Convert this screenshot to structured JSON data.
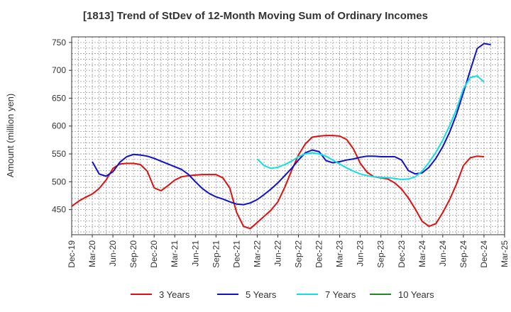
{
  "chart_data": {
    "type": "line",
    "title": "[1813]  Trend of StDev of 12-Month Moving Sum of Ordinary Incomes",
    "xlabel": "",
    "ylabel": "Amount (million yen)",
    "ylim": [
      405,
      760
    ],
    "yticks": [
      450,
      500,
      550,
      600,
      650,
      700,
      750
    ],
    "grid": true,
    "legend_position": "bottom",
    "x_tick_labels": [
      "Dec-19",
      "Mar-20",
      "Jun-20",
      "Sep-20",
      "Dec-20",
      "Mar-21",
      "Jun-21",
      "Sep-21",
      "Dec-21",
      "Mar-22",
      "Jun-22",
      "Sep-22",
      "Dec-22",
      "Mar-23",
      "Jun-23",
      "Sep-23",
      "Dec-23",
      "Mar-24",
      "Jun-24",
      "Sep-24",
      "Dec-24",
      "Mar-25"
    ],
    "x_months": [
      "Dec-19",
      "Jan-20",
      "Feb-20",
      "Mar-20",
      "Apr-20",
      "May-20",
      "Jun-20",
      "Jul-20",
      "Aug-20",
      "Sep-20",
      "Oct-20",
      "Nov-20",
      "Dec-20",
      "Jan-21",
      "Feb-21",
      "Mar-21",
      "Apr-21",
      "May-21",
      "Jun-21",
      "Jul-21",
      "Aug-21",
      "Sep-21",
      "Oct-21",
      "Nov-21",
      "Dec-21",
      "Jan-22",
      "Feb-22",
      "Mar-22",
      "Apr-22",
      "May-22",
      "Jun-22",
      "Jul-22",
      "Aug-22",
      "Sep-22",
      "Oct-22",
      "Nov-22",
      "Dec-22",
      "Jan-23",
      "Feb-23",
      "Mar-23",
      "Apr-23",
      "May-23",
      "Jun-23",
      "Jul-23",
      "Aug-23",
      "Sep-23",
      "Oct-23",
      "Nov-23",
      "Dec-23",
      "Jan-24",
      "Feb-24",
      "Mar-24",
      "Apr-24",
      "May-24",
      "Jun-24",
      "Jul-24",
      "Aug-24",
      "Sep-24",
      "Oct-24",
      "Nov-24",
      "Dec-24",
      "Jan-25",
      "Feb-25",
      "Mar-25"
    ],
    "series": [
      {
        "name": "3 Years",
        "color": "#dd1111",
        "values": [
          456,
          465,
          472,
          478,
          488,
          503,
          524,
          532,
          533,
          533,
          531,
          519,
          489,
          484,
          493,
          503,
          509,
          511,
          512,
          513,
          513,
          513,
          507,
          489,
          445,
          420,
          416,
          427,
          438,
          449,
          464,
          490,
          520,
          548,
          568,
          580,
          582,
          583,
          583,
          582,
          576,
          559,
          533,
          517,
          509,
          507,
          505,
          498,
          487,
          471,
          451,
          429,
          420,
          425,
          445,
          468,
          496,
          529,
          543,
          546,
          545,
          null,
          null,
          null
        ]
      },
      {
        "name": "5 Years",
        "color": "#1111cc",
        "values": [
          null,
          null,
          null,
          536,
          514,
          510,
          518,
          535,
          545,
          549,
          548,
          546,
          542,
          537,
          532,
          527,
          522,
          513,
          500,
          488,
          479,
          473,
          469,
          464,
          460,
          459,
          462,
          468,
          477,
          487,
          498,
          511,
          524,
          539,
          552,
          557,
          554,
          538,
          534,
          536,
          539,
          541,
          544,
          546,
          546,
          545,
          545,
          545,
          539,
          520,
          514,
          516,
          526,
          542,
          563,
          589,
          621,
          660,
          700,
          739,
          748,
          746,
          null,
          null
        ]
      },
      {
        "name": "7 Years",
        "color": "#11e0e0",
        "values": [
          null,
          null,
          null,
          null,
          null,
          null,
          null,
          null,
          null,
          null,
          null,
          null,
          null,
          null,
          null,
          null,
          null,
          null,
          null,
          null,
          null,
          null,
          null,
          null,
          null,
          null,
          null,
          541,
          529,
          524,
          526,
          531,
          537,
          545,
          550,
          552,
          550,
          546,
          539,
          532,
          525,
          519,
          514,
          511,
          509,
          508,
          507,
          506,
          504,
          505,
          509,
          519,
          535,
          553,
          575,
          601,
          630,
          667,
          687,
          690,
          679,
          null,
          null,
          null
        ]
      },
      {
        "name": "10 Years",
        "color": "#228822",
        "values": []
      }
    ]
  }
}
